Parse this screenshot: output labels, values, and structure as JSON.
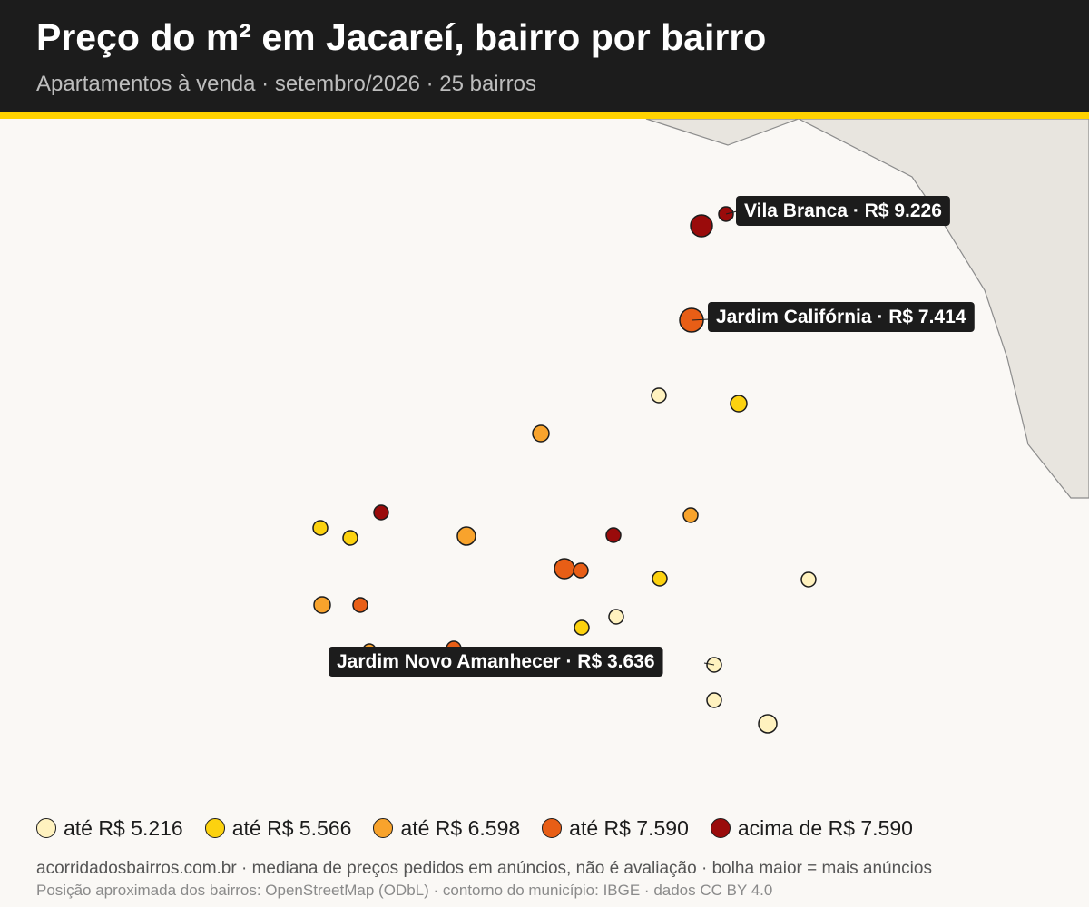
{
  "header": {
    "title": "Preço do m² em Jacareí, bairro por bairro",
    "subtitle": "Apartamentos à venda · setembro/2026 · 25 bairros"
  },
  "colors": {
    "header_bg": "#1c1c1c",
    "accent": "#ffd200",
    "map_bg": "#faf8f5",
    "outside_area": "#e8e5df",
    "boundary_stroke": "#8c8c8c",
    "bubble_stroke": "#1c1c1c",
    "callout_bg": "#1c1c1c"
  },
  "legend": [
    {
      "label": "até R$ 5.216",
      "color": "#fff2bf"
    },
    {
      "label": "até R$ 5.566",
      "color": "#fcd20f"
    },
    {
      "label": "até R$ 6.598",
      "color": "#f8a32c"
    },
    {
      "label": "até R$ 7.590",
      "color": "#e85e16"
    },
    {
      "label": "acima de R$ 7.590",
      "color": "#9a0b0b"
    }
  ],
  "callouts": [
    {
      "text": "Vila Branca · R$ 9.226"
    },
    {
      "text": "Jardim Califórnia · R$ 7.414"
    },
    {
      "text": "Jardim Novo Amanhecer · R$ 3.636"
    }
  ],
  "bubbles": [
    {
      "tier": 4,
      "name": "Vila Branca",
      "price": "R$ 9.226"
    },
    {
      "tier": 4
    },
    {
      "tier": 3,
      "name": "Jardim Califórnia",
      "price": "R$ 7.414"
    },
    {
      "tier": 0
    },
    {
      "tier": 1
    },
    {
      "tier": 2
    },
    {
      "tier": 1
    },
    {
      "tier": 4
    },
    {
      "tier": 1
    },
    {
      "tier": 2
    },
    {
      "tier": 4
    },
    {
      "tier": 2
    },
    {
      "tier": 3
    },
    {
      "tier": 3
    },
    {
      "tier": 1
    },
    {
      "tier": 0
    },
    {
      "tier": 2
    },
    {
      "tier": 3
    },
    {
      "tier": 0
    },
    {
      "tier": 1
    },
    {
      "tier": 2
    },
    {
      "tier": 0,
      "name": "Jardim Novo Amanhecer",
      "price": "R$ 3.636"
    },
    {
      "tier": 0
    },
    {
      "tier": 0
    },
    {
      "tier": 3
    }
  ],
  "footer": {
    "line1": "acorridadosbairros.com.br · mediana de preços pedidos em anúncios, não é avaliação · bolha maior = mais anúncios",
    "line2": "Posição aproximada dos bairros: OpenStreetMap (ODbL) · contorno do município: IBGE · dados CC BY 4.0"
  }
}
